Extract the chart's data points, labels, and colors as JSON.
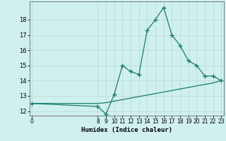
{
  "xlabel": "Humidex (Indice chaleur)",
  "background_color": "#cff0ee",
  "grid_color": "#c0ddd8",
  "line_color": "#1a7a6e",
  "x_hours": [
    0,
    8,
    9,
    10,
    11,
    12,
    13,
    14,
    15,
    16,
    17,
    18,
    19,
    20,
    21,
    22,
    23
  ],
  "y_humidex": [
    12.5,
    12.3,
    11.8,
    13.1,
    15.0,
    14.6,
    14.4,
    17.3,
    18.0,
    18.8,
    17.0,
    16.3,
    15.3,
    15.0,
    14.3,
    14.3,
    14.0
  ],
  "x_baseline": [
    0,
    8,
    9,
    10,
    11,
    12,
    13,
    14,
    15,
    16,
    17,
    18,
    19,
    20,
    21,
    22,
    23
  ],
  "y_baseline": [
    12.5,
    12.5,
    12.55,
    12.65,
    12.75,
    12.85,
    12.95,
    13.05,
    13.15,
    13.25,
    13.35,
    13.45,
    13.55,
    13.65,
    13.75,
    13.85,
    14.0
  ],
  "ylim": [
    11.7,
    19.2
  ],
  "yticks": [
    12,
    13,
    14,
    15,
    16,
    17,
    18
  ],
  "xlim": [
    -0.3,
    23.3
  ],
  "xticks": [
    0,
    8,
    9,
    10,
    11,
    12,
    13,
    14,
    15,
    16,
    17,
    18,
    19,
    20,
    21,
    22,
    23
  ]
}
